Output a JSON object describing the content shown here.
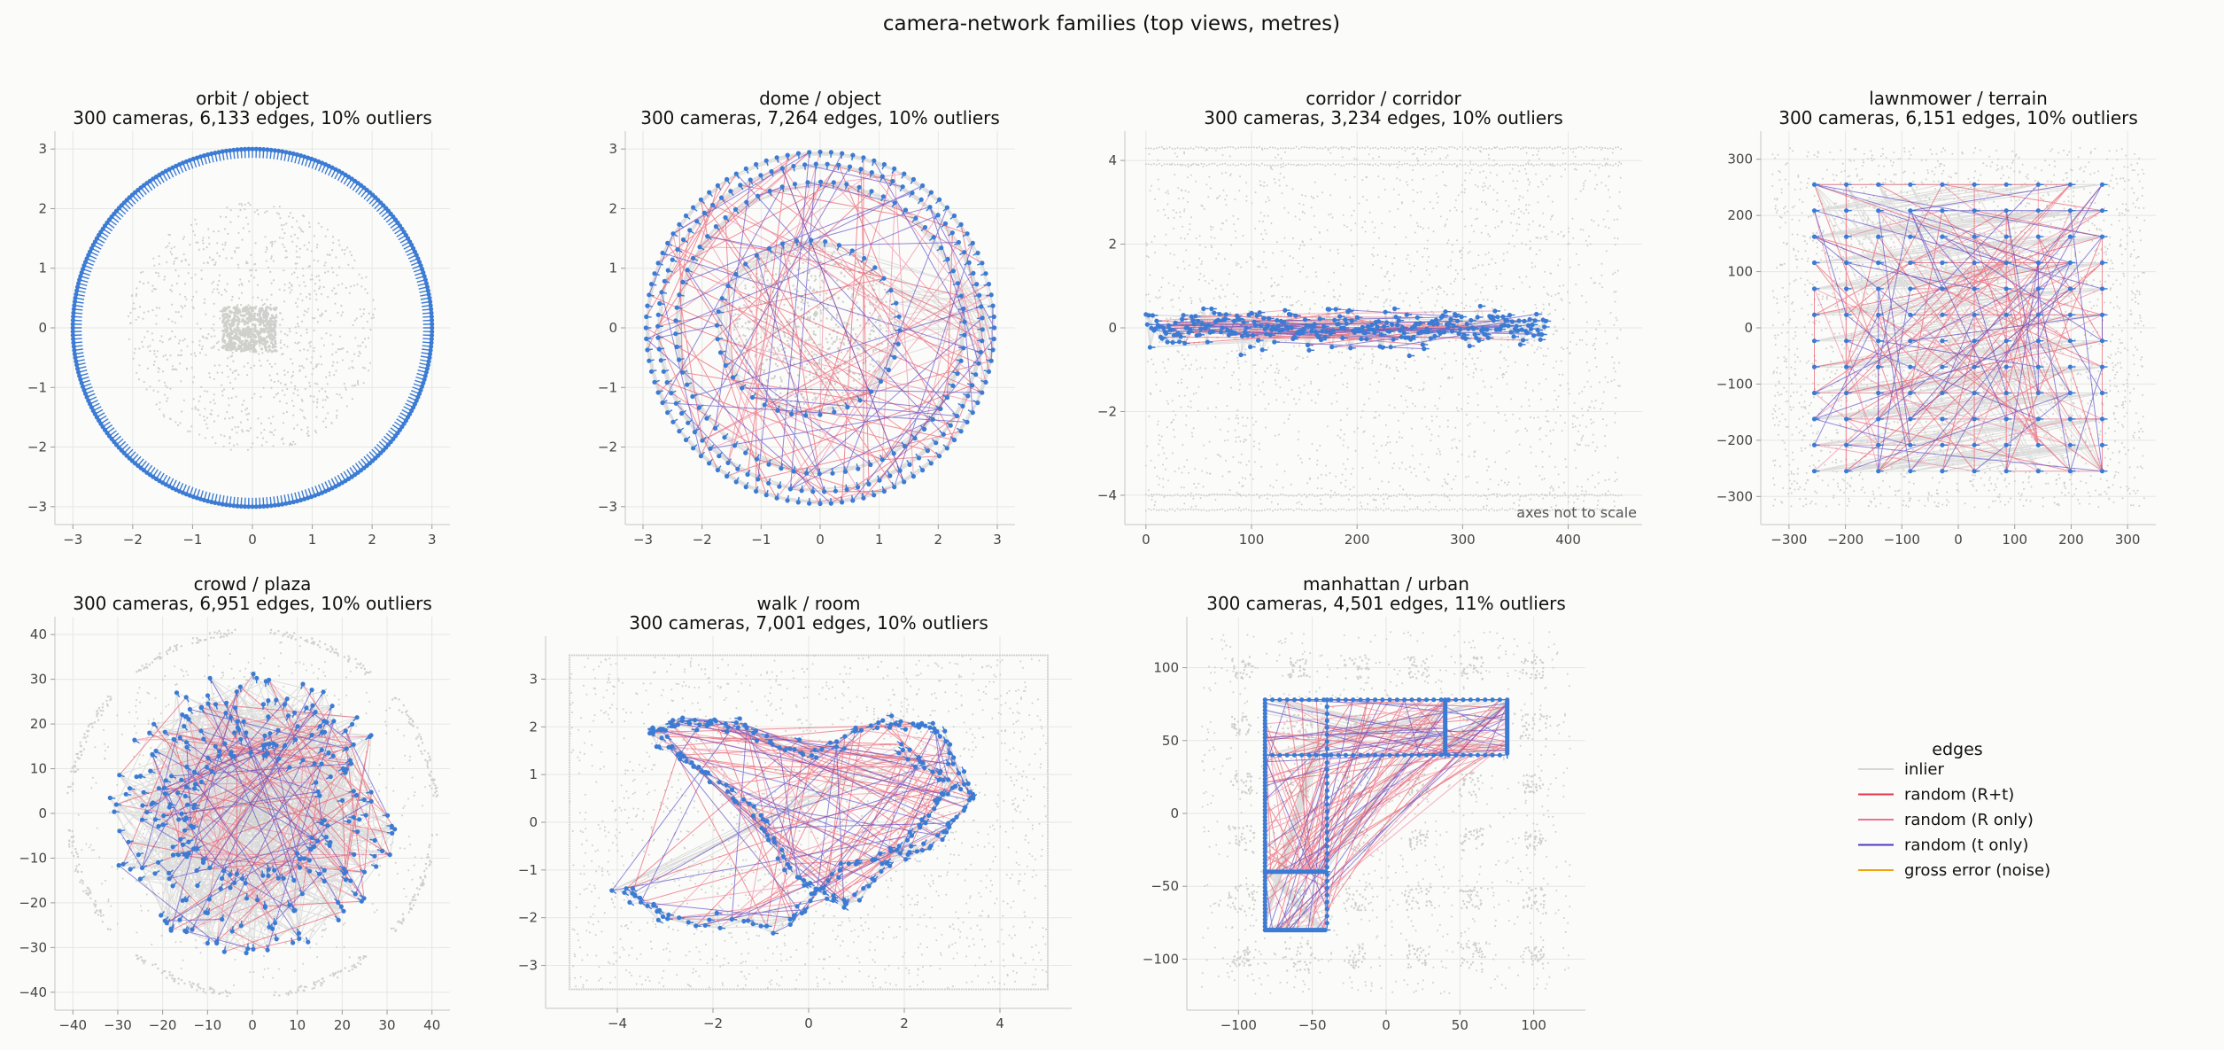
{
  "figure": {
    "title": "camera-network families (top views, metres)"
  },
  "legend": {
    "title": "edges",
    "entries": [
      {
        "label": "inlier",
        "color": "#d6d6d6"
      },
      {
        "label": "random (R+t)",
        "color": "#e3344a"
      },
      {
        "label": "random (R only)",
        "color": "#ee6f8e"
      },
      {
        "label": "random (t only)",
        "color": "#4b3bbf"
      },
      {
        "label": "gross error (noise)",
        "color": "#f0a30a"
      }
    ]
  },
  "colors": {
    "camera": "#3b7bd4",
    "point": "#cfcfcc",
    "grid": "#e6e6e3",
    "axis": "#cfcfcc"
  },
  "chart_data": [
    {
      "id": "orbit",
      "type": "scatter",
      "layout": "orbit",
      "title_line1": "orbit / object",
      "title_line2": "300 cameras, 6,133 edges, 10% outliers",
      "xlim": [
        -3.3,
        3.3
      ],
      "ylim": [
        -3.3,
        3.3
      ],
      "xticks": [
        -3,
        -2,
        -1,
        0,
        1,
        2,
        3
      ],
      "yticks": [
        -3,
        -2,
        -1,
        0,
        1,
        2,
        3
      ],
      "cameras": 300,
      "edges": 6133,
      "outliers_pct": 10,
      "camera_radius": 3.0
    },
    {
      "id": "dome",
      "type": "scatter",
      "layout": "dome",
      "title_line1": "dome / object",
      "title_line2": "300 cameras, 7,264 edges, 10% outliers",
      "xlim": [
        -3.3,
        3.3
      ],
      "ylim": [
        -3.3,
        3.3
      ],
      "xticks": [
        -3,
        -2,
        -1,
        0,
        1,
        2,
        3
      ],
      "yticks": [
        -3,
        -2,
        -1,
        0,
        1,
        2,
        3
      ],
      "cameras": 300,
      "edges": 7264,
      "outliers_pct": 10,
      "rings": [
        2.95,
        2.75,
        2.45,
        1.55
      ]
    },
    {
      "id": "corridor",
      "type": "scatter",
      "layout": "corridor",
      "title_line1": "corridor / corridor",
      "title_line2": "300 cameras, 3,234 edges, 10% outliers",
      "xlim": [
        -20,
        470
      ],
      "ylim": [
        -4.7,
        4.7
      ],
      "xticks": [
        0,
        100,
        200,
        300,
        400
      ],
      "yticks": [
        -4,
        -2,
        0,
        2,
        4
      ],
      "cameras": 300,
      "edges": 3234,
      "outliers_pct": 10,
      "camera_x_range": [
        0,
        380
      ],
      "wall_y": [
        4.3,
        3.9,
        -4.0,
        -4.35
      ],
      "note": "axes not to scale"
    },
    {
      "id": "lawnmower",
      "type": "scatter",
      "layout": "lawnmower",
      "title_line1": "lawnmower / terrain",
      "title_line2": "300 cameras, 6,151 edges, 10% outliers",
      "xlim": [
        -350,
        350
      ],
      "ylim": [
        -350,
        350
      ],
      "xticks": [
        -300,
        -200,
        -100,
        0,
        100,
        200,
        300
      ],
      "yticks": [
        -300,
        -200,
        -100,
        0,
        100,
        200,
        300
      ],
      "cameras": 300,
      "edges": 6151,
      "outliers_pct": 10,
      "grid_x_range": [
        -255,
        255
      ],
      "grid_y_range": [
        -255,
        255
      ],
      "rows": 12,
      "cols": 10
    },
    {
      "id": "crowd",
      "type": "scatter",
      "layout": "crowd",
      "title_line1": "crowd / plaza",
      "title_line2": "300 cameras, 6,951 edges, 10% outliers",
      "xlim": [
        -44,
        44
      ],
      "ylim": [
        -44,
        44
      ],
      "xticks": [
        -40,
        -30,
        -20,
        -10,
        0,
        10,
        20,
        30,
        40
      ],
      "yticks": [
        -40,
        -30,
        -20,
        -10,
        0,
        10,
        20,
        30,
        40
      ],
      "cameras": 300,
      "edges": 6951,
      "outliers_pct": 10,
      "inner_radius": 13,
      "outer_radius": 32
    },
    {
      "id": "walk",
      "type": "scatter",
      "layout": "walk",
      "title_line1": "walk / room",
      "title_line2": "300 cameras, 7,001 edges, 10% outliers",
      "xlim": [
        -5.5,
        5.5
      ],
      "ylim": [
        -3.9,
        3.9
      ],
      "xticks": [
        -4,
        -2,
        0,
        2,
        4
      ],
      "yticks": [
        -3,
        -2,
        -1,
        0,
        1,
        2,
        3
      ],
      "cameras": 300,
      "edges": 7001,
      "outliers_pct": 10,
      "room_x": [
        -5,
        5
      ],
      "room_y": [
        -3.5,
        3.5
      ]
    },
    {
      "id": "manhattan",
      "type": "scatter",
      "layout": "manhattan",
      "title_line1": "manhattan / urban",
      "title_line2": "300 cameras, 4,501 edges, 11% outliers",
      "xlim": [
        -135,
        135
      ],
      "ylim": [
        -135,
        135
      ],
      "xticks": [
        -100,
        -50,
        0,
        50,
        100
      ],
      "yticks": [
        -100,
        -50,
        0,
        50,
        100
      ],
      "cameras": 300,
      "edges": 4501,
      "outliers_pct": 11,
      "streets": [
        [
          [
            -82,
            78
          ],
          [
            82,
            78
          ]
        ],
        [
          [
            -82,
            40
          ],
          [
            82,
            40
          ]
        ],
        [
          [
            -82,
            78
          ],
          [
            -82,
            0
          ]
        ],
        [
          [
            -82,
            0
          ],
          [
            -82,
            -80
          ]
        ],
        [
          [
            -40,
            78
          ],
          [
            -40,
            -80
          ]
        ],
        [
          [
            -82,
            -80
          ],
          [
            -40,
            -80
          ]
        ],
        [
          [
            -82,
            -40
          ],
          [
            -40,
            -40
          ]
        ],
        [
          [
            40,
            78
          ],
          [
            40,
            40
          ]
        ],
        [
          [
            82,
            78
          ],
          [
            82,
            40
          ]
        ]
      ]
    }
  ]
}
